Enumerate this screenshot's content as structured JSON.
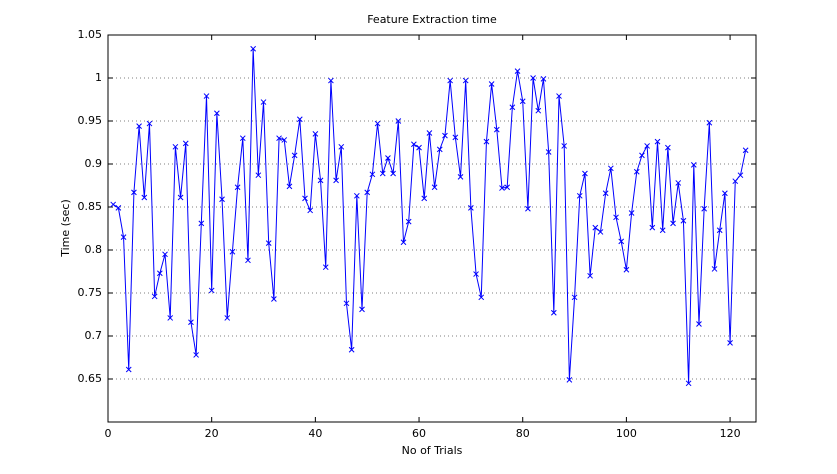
{
  "chart_data": {
    "type": "line",
    "title": "Feature Extraction time",
    "x_label": "No of Trials",
    "y_label": "Time (sec)",
    "x": [
      1,
      2,
      3,
      4,
      5,
      6,
      7,
      8,
      9,
      10,
      11,
      12,
      13,
      14,
      15,
      16,
      17,
      18,
      19,
      20,
      21,
      22,
      23,
      24,
      25,
      26,
      27,
      28,
      29,
      30,
      31,
      32,
      33,
      34,
      35,
      36,
      37,
      38,
      39,
      40,
      41,
      42,
      43,
      44,
      45,
      46,
      47,
      48,
      49,
      50,
      51,
      52,
      53,
      54,
      55,
      56,
      57,
      58,
      59,
      60,
      61,
      62,
      63,
      64,
      65,
      66,
      67,
      68,
      69,
      70,
      71,
      72,
      73,
      74,
      75,
      76,
      77,
      78,
      79,
      80,
      81,
      82,
      83,
      84,
      85,
      86,
      87,
      88,
      89,
      90,
      91,
      92,
      93,
      94,
      95,
      96,
      97,
      98,
      99,
      100,
      101,
      102,
      103,
      104,
      105,
      106,
      107,
      108,
      109,
      110,
      111,
      112,
      113,
      114,
      115,
      116,
      117,
      118,
      119,
      120,
      121,
      122,
      123
    ],
    "values": [
      0.853,
      0.849,
      0.815,
      0.661,
      0.867,
      0.944,
      0.861,
      0.947,
      0.746,
      0.773,
      0.795,
      0.721,
      0.92,
      0.861,
      0.924,
      0.716,
      0.678,
      0.831,
      0.979,
      0.753,
      0.959,
      0.859,
      0.721,
      0.798,
      0.873,
      0.93,
      0.788,
      1.034,
      0.887,
      0.972,
      0.808,
      0.743,
      0.93,
      0.928,
      0.874,
      0.91,
      0.952,
      0.86,
      0.846,
      0.935,
      0.881,
      0.78,
      0.997,
      0.881,
      0.92,
      0.738,
      0.684,
      0.863,
      0.731,
      0.867,
      0.888,
      0.947,
      0.889,
      0.907,
      0.889,
      0.95,
      0.809,
      0.833,
      0.923,
      0.919,
      0.86,
      0.936,
      0.873,
      0.917,
      0.933,
      0.997,
      0.931,
      0.885,
      0.997,
      0.849,
      0.772,
      0.745,
      0.926,
      0.993,
      0.94,
      0.872,
      0.873,
      0.966,
      1.008,
      0.973,
      0.848,
      1.0,
      0.962,
      0.999,
      0.914,
      0.727,
      0.979,
      0.921,
      0.649,
      0.745,
      0.863,
      0.889,
      0.77,
      0.826,
      0.821,
      0.866,
      0.895,
      0.838,
      0.81,
      0.777,
      0.843,
      0.891,
      0.91,
      0.921,
      0.826,
      0.926,
      0.823,
      0.919,
      0.831,
      0.878,
      0.834,
      0.645,
      0.899,
      0.714,
      0.848,
      0.948,
      0.778,
      0.823,
      0.866,
      0.692,
      0.88,
      0.887,
      0.916
    ],
    "color": "#0000ff",
    "marker": "x",
    "xlim": [
      0,
      125
    ],
    "xticks": [
      0,
      20,
      40,
      60,
      80,
      100,
      120
    ],
    "ylim": [
      0.6,
      1.05
    ],
    "yticks": [
      0.65,
      0.7,
      0.75,
      0.8,
      0.85,
      0.9,
      0.95,
      1,
      1.05
    ],
    "grid": "y"
  }
}
